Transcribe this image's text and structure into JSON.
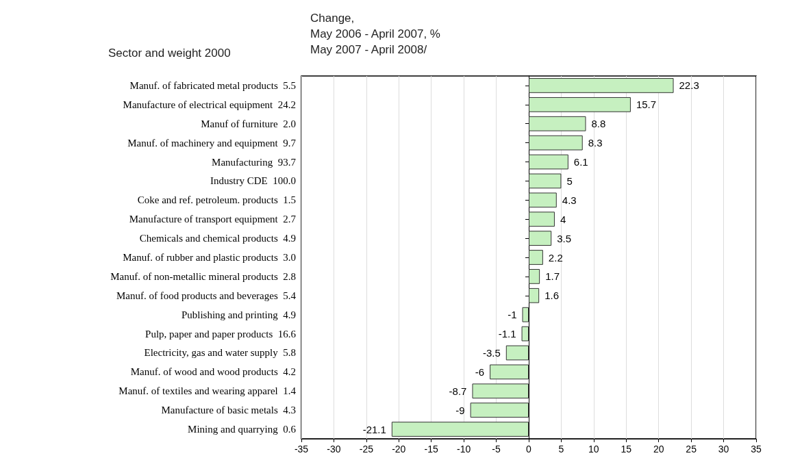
{
  "chart_data": {
    "type": "bar",
    "orientation": "horizontal",
    "title": "Change,\nMay 2006 - April 2007, %\nMay 2007 - April 2008/",
    "ylabel": "Sector and weight 2000",
    "categories": [
      "Manuf. of fabricated metal products  5.5",
      "Manufacture of electrical equipment  24.2",
      "Manuf of furniture  2.0",
      "Manuf. of machinery and equipment  9.7",
      "Manufacturing  93.7",
      "Industry CDE  100.0",
      "Coke and ref. petroleum. products  1.5",
      "Manufacture of transport equipment  2.7",
      "Chemicals and chemical products  4.9",
      "Manuf. of rubber and plastic products  3.0",
      "Manuf. of non-metallic mineral products  2.8",
      "Manuf. of food products and beverages  5.4",
      "Publishing and printing  4.9",
      "Pulp, paper and paper products  16.6",
      "Electricity, gas and water supply  5.8",
      "Manuf. of wood and wood products  4.2",
      "Manuf. of textiles and wearing apparel  1.4",
      "Manufacture of basic metals  4.3",
      "Mining and quarrying  0.6"
    ],
    "values": [
      22.3,
      15.7,
      8.8,
      8.3,
      6.1,
      5,
      4.3,
      4,
      3.5,
      2.2,
      1.7,
      1.6,
      -1,
      -1.1,
      -3.5,
      -6,
      -8.7,
      -9,
      -21.1
    ],
    "color": "#c6f0c0",
    "data_labels": true,
    "grid": "x",
    "xlim": [
      -35,
      35
    ],
    "xticks": [
      -35,
      -30,
      -25,
      -20,
      -15,
      -10,
      -5,
      0,
      5,
      10,
      15,
      20,
      25,
      30,
      35
    ]
  }
}
